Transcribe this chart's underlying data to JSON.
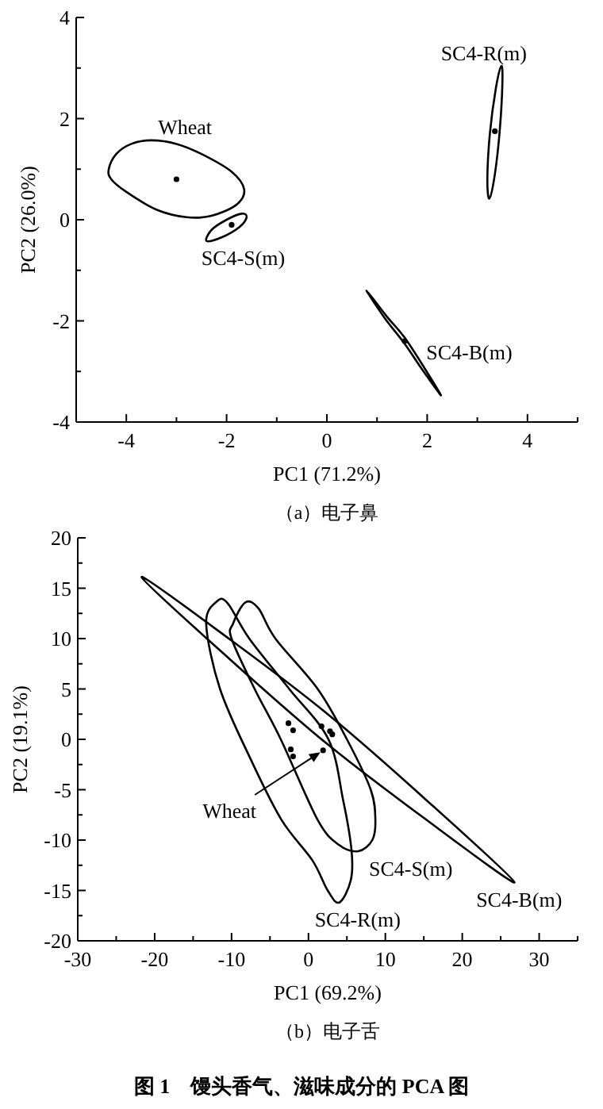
{
  "chart_data": [
    {
      "type": "scatter",
      "title": "（a）电子鼻",
      "xlabel": "PC1 (71.2%)",
      "ylabel": "PC2 (26.0%)",
      "xlim": [
        -5,
        5
      ],
      "ylim": [
        -4,
        4
      ],
      "xticks": [
        {
          "value": -5,
          "label": null
        },
        -4,
        {
          "value": -3,
          "label": null
        },
        -2,
        {
          "value": -1,
          "label": null
        },
        0,
        {
          "value": 1,
          "label": null
        },
        2,
        {
          "value": 3,
          "label": null
        },
        4,
        {
          "value": 5,
          "label": null
        }
      ],
      "yticks": [
        -4,
        {
          "value": -3,
          "label": null
        },
        -2,
        {
          "value": -1,
          "label": null
        },
        0,
        {
          "value": 1,
          "label": null
        },
        2,
        {
          "value": 3,
          "label": null
        },
        4
      ],
      "series": [
        {
          "color": "#000000",
          "x": [
            -3.0,
            -1.9,
            3.35,
            1.55
          ],
          "values": [
            0.8,
            -0.1,
            1.75,
            -2.4
          ]
        }
      ],
      "annotations": [
        "Wheat",
        "SC4-S(m)",
        "SC4-R(m)",
        "SC4-B(m)"
      ]
    },
    {
      "type": "scatter",
      "title": "（b）电子舌",
      "xlabel": "PC1 (69.2%)",
      "ylabel": "PC2 (19.1%)",
      "xlim": [
        -30,
        35
      ],
      "ylim": [
        -20,
        20
      ],
      "xticks": [
        -30,
        {
          "value": -25,
          "label": null
        },
        -20,
        {
          "value": -15,
          "label": null
        },
        -10,
        {
          "value": -5,
          "label": null
        },
        0,
        {
          "value": 5,
          "label": null
        },
        10,
        {
          "value": 15,
          "label": null
        },
        20,
        {
          "value": 25,
          "label": null
        },
        30,
        {
          "value": 35,
          "label": null
        }
      ],
      "yticks": [
        -20,
        {
          "value": -17.5,
          "label": null
        },
        -15,
        {
          "value": -12.5,
          "label": null
        },
        -10,
        {
          "value": -7.5,
          "label": null
        },
        -5,
        {
          "value": -2.5,
          "label": null
        },
        0,
        {
          "value": 2.5,
          "label": null
        },
        5,
        {
          "value": 7.5,
          "label": null
        },
        10,
        {
          "value": 12.5,
          "label": null
        },
        15,
        {
          "value": 17.5,
          "label": null
        },
        20
      ],
      "series": [
        {
          "color": "#000000",
          "x": [
            -2.6,
            -2.0,
            -2.3,
            -2.0,
            1.7,
            2.8,
            3.1,
            1.9
          ],
          "values": [
            1.6,
            0.9,
            -1.0,
            -1.7,
            1.3,
            0.8,
            0.5,
            -1.1
          ]
        }
      ],
      "annotations": [
        {
          "text": "Wheat",
          "x": 1.9,
          "y": -1.1
        },
        "SC4-S(m)",
        "SC4-R(m)",
        "SC4-B(m)",
        "图 1　馒头香气、滋味成分的 PCA 图"
      ]
    }
  ]
}
